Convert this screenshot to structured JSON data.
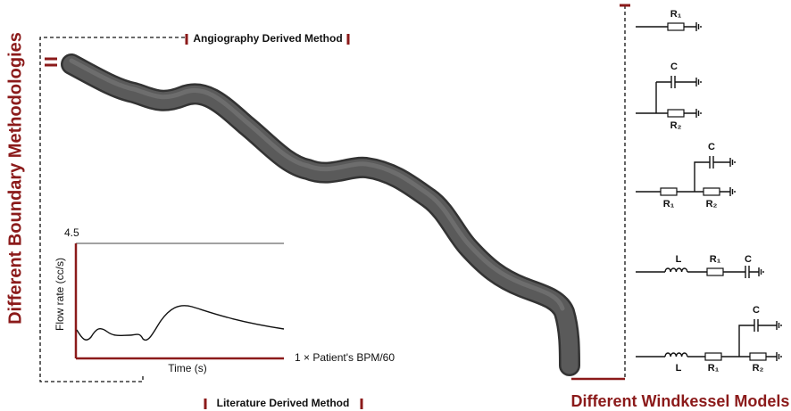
{
  "left_title": "Different Boundary Methodologies",
  "angiography_label": "Angiography Derived Method",
  "literature_label": "Literature Derived Method",
  "right_title": "Different Windkessel Models",
  "flow_plot": {
    "y_top_label": "4.5",
    "y_axis_label": "Flow rate (cc/s)",
    "x_axis_label": "Time (s)",
    "x_end_label": "1 × Patient's BPM/60"
  },
  "models": [
    {
      "labels": [
        "R₁"
      ]
    },
    {
      "labels": [
        "C",
        "R₂"
      ]
    },
    {
      "labels": [
        "C",
        "R₁",
        "R₂"
      ]
    },
    {
      "labels": [
        "L",
        "R₁",
        "C"
      ]
    },
    {
      "labels": [
        "C",
        "L",
        "R₁",
        "R₂"
      ]
    }
  ]
}
